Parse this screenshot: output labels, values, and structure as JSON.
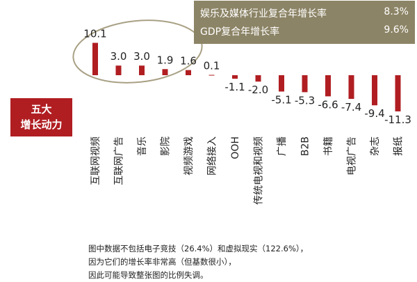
{
  "summary": {
    "rows": [
      {
        "label": "娱乐及媒体行业复合年增长率",
        "value": "8.3%"
      },
      {
        "label": "GDP复合年增长率",
        "value": "9.6%"
      }
    ]
  },
  "callout": {
    "line1": "五大",
    "line2": "增长动力"
  },
  "footnote": {
    "lines": [
      "图中数据不包括电子竞技（26.4%）和虚拟现实（122.6%），",
      "因为它们的增长率非常高（但基数很小），",
      "因此可能导致整张图的比例失调。"
    ]
  },
  "colors": {
    "bar": "#b01e22",
    "summary_bg": "#8c8466",
    "highlight_ring": "#a8a084",
    "callout_bg": "#b01e22"
  },
  "chart_data": {
    "type": "bar",
    "categories": [
      "互联网视频",
      "互联网广告",
      "音乐",
      "影院",
      "视频游戏",
      "网络接入",
      "OOH",
      "传统电视和视频",
      "广播",
      "B2B",
      "书籍",
      "电视广告",
      "杂志",
      "报纸"
    ],
    "values": [
      10.1,
      3.0,
      3.0,
      1.9,
      1.6,
      0.1,
      -1.1,
      -2.0,
      -5.1,
      -5.3,
      -6.6,
      -7.4,
      -9.4,
      -11.3
    ],
    "value_labels": [
      "10.1",
      "3.0",
      "3.0",
      "1.9",
      "1.6",
      "0.1",
      "-1.1",
      "-2.0",
      "-5.1",
      "-5.3",
      "-6.6",
      "-7.4",
      "-9.4",
      "-11.3"
    ],
    "title": "",
    "xlabel": "",
    "ylabel": "",
    "highlighted_categories": [
      "互联网视频",
      "互联网广告",
      "音乐",
      "影院",
      "视频游戏"
    ],
    "axis_visible": false,
    "grid": false,
    "legend": "none"
  }
}
